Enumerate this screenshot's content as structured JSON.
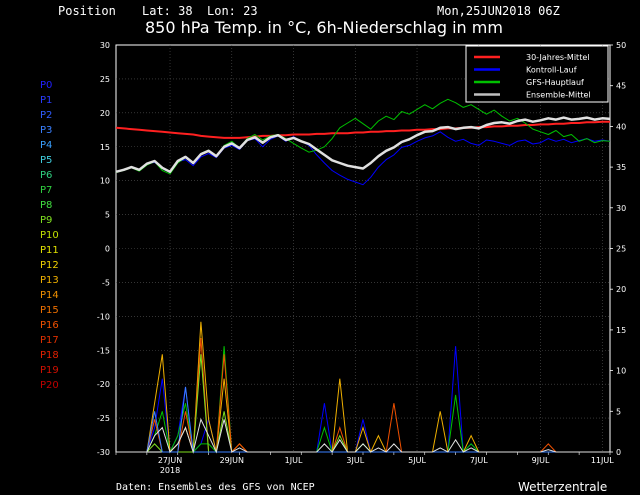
{
  "header": {
    "position_label": "Position",
    "lat_label": "Lat: 38",
    "lon_label": "Lon: 23",
    "date": "Mon,25JUN2018 06Z",
    "title": "850 hPa Temp. in °C, 6h-Niederschlag in mm"
  },
  "footer": {
    "source": "Daten: Ensembles des GFS von NCEP",
    "brand": "Wetterzentrale"
  },
  "members": [
    {
      "label": "P0",
      "color": "#2020ff"
    },
    {
      "label": "P1",
      "color": "#2a3cff"
    },
    {
      "label": "P2",
      "color": "#2f5cff"
    },
    {
      "label": "P3",
      "color": "#3a80ff"
    },
    {
      "label": "P4",
      "color": "#3aa0ff"
    },
    {
      "label": "P5",
      "color": "#40d0e0"
    },
    {
      "label": "P6",
      "color": "#30d080"
    },
    {
      "label": "P7",
      "color": "#30d040"
    },
    {
      "label": "P8",
      "color": "#40e040"
    },
    {
      "label": "P9",
      "color": "#80e020"
    },
    {
      "label": "P10",
      "color": "#c0e000"
    },
    {
      "label": "P11",
      "color": "#e0e000"
    },
    {
      "label": "P12",
      "color": "#f0d000"
    },
    {
      "label": "P13",
      "color": "#f0b000"
    },
    {
      "label": "P14",
      "color": "#f09000"
    },
    {
      "label": "P15",
      "color": "#f07000"
    },
    {
      "label": "P16",
      "color": "#f05000"
    },
    {
      "label": "P17",
      "color": "#e03000"
    },
    {
      "label": "P18",
      "color": "#e02000"
    },
    {
      "label": "P19",
      "color": "#d01000"
    },
    {
      "label": "P20",
      "color": "#c00000"
    }
  ],
  "chart_data": {
    "type": "line",
    "title": "850 hPa Temp. in °C, 6h-Niederschlag in mm",
    "x_start": "2018-06-25 06Z",
    "x_step_hours": 6,
    "x_ticks": [
      {
        "label": "27JUN",
        "idx": 7
      },
      {
        "label": "29JUN",
        "idx": 15
      },
      {
        "label": "1JUL",
        "idx": 23
      },
      {
        "label": "3JUL",
        "idx": 31
      },
      {
        "label": "5JUL",
        "idx": 39
      },
      {
        "label": "7JUL",
        "idx": 47
      },
      {
        "label": "9JUL",
        "idx": 55
      },
      {
        "label": "11JUL",
        "idx": 63
      }
    ],
    "x_sublabel": {
      "label": "2018",
      "idx": 7
    },
    "y_left": {
      "min": -30,
      "max": 30,
      "ticks": [
        30,
        25,
        20,
        15,
        10,
        5,
        0,
        -5,
        -10,
        -15,
        -20,
        -25,
        -30
      ]
    },
    "y_right": {
      "min": 0,
      "max": 50,
      "ticks": [
        50,
        45,
        40,
        35,
        30,
        25,
        20,
        15,
        10,
        5,
        0
      ]
    },
    "legend": [
      {
        "name": "30-Jahres-Mittel",
        "color": "#ff2020"
      },
      {
        "name": "Kontroll-Lauf",
        "color": "#0000ff"
      },
      {
        "name": "GFS-Hauptlauf",
        "color": "#00c000"
      },
      {
        "name": "Ensemble-Mittel",
        "color": "#c0c0c0"
      }
    ],
    "legend_placement": "top-right",
    "grid": true,
    "series": [
      {
        "name": "30-Jahres-Mittel",
        "color": "#ff2020",
        "width": 2,
        "values": [
          17.8,
          17.7,
          17.6,
          17.5,
          17.4,
          17.3,
          17.2,
          17.1,
          17.0,
          16.9,
          16.8,
          16.6,
          16.5,
          16.4,
          16.3,
          16.3,
          16.3,
          16.4,
          16.5,
          16.6,
          16.6,
          16.7,
          16.7,
          16.8,
          16.8,
          16.8,
          16.9,
          16.9,
          17.0,
          17.0,
          17.0,
          17.1,
          17.1,
          17.2,
          17.2,
          17.3,
          17.3,
          17.4,
          17.4,
          17.5,
          17.5,
          17.6,
          17.6,
          17.7,
          17.7,
          17.8,
          17.8,
          17.9,
          17.9,
          18.0,
          18.0,
          18.1,
          18.1,
          18.2,
          18.2,
          18.3,
          18.3,
          18.4,
          18.4,
          18.5,
          18.5,
          18.6,
          18.6,
          18.7,
          18.7
        ]
      },
      {
        "name": "Kontroll-Lauf",
        "color": "#0000ff",
        "width": 1,
        "values": [
          11.3,
          11.6,
          12.0,
          11.6,
          12.5,
          12.7,
          11.8,
          11.2,
          12.8,
          13.1,
          12.2,
          13.5,
          14.0,
          13.4,
          14.8,
          15.2,
          14.6,
          15.9,
          16.2,
          15.0,
          16.1,
          16.6,
          15.8,
          16.5,
          15.8,
          15.2,
          13.8,
          12.6,
          11.5,
          10.8,
          10.2,
          9.8,
          9.4,
          10.5,
          12.0,
          13.1,
          13.8,
          14.9,
          15.2,
          15.8,
          16.3,
          16.6,
          17.2,
          16.4,
          15.8,
          16.1,
          15.5,
          15.2,
          16.0,
          15.8,
          15.5,
          15.2,
          15.8,
          16.0,
          15.4,
          15.6,
          16.2,
          15.8,
          16.1,
          15.6,
          15.9,
          16.2,
          15.8,
          16.0,
          15.8
        ]
      },
      {
        "name": "GFS-Hauptlauf",
        "color": "#00c000",
        "width": 1,
        "values": [
          11.2,
          11.5,
          11.9,
          11.4,
          12.3,
          12.8,
          11.5,
          11.0,
          12.6,
          13.4,
          12.5,
          14.0,
          14.5,
          13.6,
          15.2,
          15.8,
          14.8,
          16.2,
          16.8,
          16.0,
          16.6,
          16.8,
          16.2,
          15.5,
          14.8,
          14.2,
          14.5,
          15.0,
          16.2,
          17.8,
          18.5,
          19.2,
          18.4,
          17.6,
          18.8,
          19.5,
          19.0,
          20.2,
          19.8,
          20.5,
          21.2,
          20.6,
          21.4,
          22.0,
          21.5,
          20.8,
          21.2,
          20.5,
          19.8,
          20.4,
          19.5,
          18.8,
          19.2,
          18.5,
          17.6,
          17.2,
          16.8,
          17.4,
          16.5,
          16.8,
          15.8,
          16.2,
          15.6,
          15.9,
          15.8
        ]
      },
      {
        "name": "Ensemble-Mittel",
        "color": "#e0e0e0",
        "width": 2.5,
        "values": [
          11.3,
          11.6,
          12.0,
          11.6,
          12.5,
          12.9,
          11.9,
          11.3,
          12.9,
          13.5,
          12.6,
          13.9,
          14.4,
          13.6,
          15.0,
          15.5,
          14.8,
          16.0,
          16.4,
          15.6,
          16.4,
          16.7,
          16.0,
          16.3,
          15.8,
          15.4,
          14.6,
          13.8,
          13.0,
          12.6,
          12.2,
          12.0,
          11.8,
          12.6,
          13.6,
          14.4,
          14.9,
          15.7,
          16.1,
          16.7,
          17.2,
          17.3,
          17.8,
          17.9,
          17.6,
          17.8,
          17.9,
          17.7,
          18.2,
          18.5,
          18.6,
          18.4,
          18.8,
          19.0,
          18.7,
          18.9,
          19.2,
          19.0,
          19.3,
          19.0,
          19.1,
          19.3,
          19.0,
          19.2,
          19.1
        ]
      }
    ],
    "precip_series": [
      {
        "name": "Kontroll-Lauf",
        "color": "#0000ff",
        "values": [
          0,
          0,
          0,
          0,
          0,
          3,
          9,
          0,
          2,
          8,
          0,
          1,
          4,
          0,
          0,
          0,
          0,
          0,
          0,
          0,
          0,
          0,
          0,
          0,
          0,
          0,
          0,
          6,
          0,
          0,
          0,
          0,
          4,
          0,
          0,
          0,
          0,
          0,
          0,
          0,
          0,
          0,
          0,
          0,
          13,
          0,
          1,
          0,
          0,
          0,
          0,
          0,
          0,
          0,
          0,
          0,
          0,
          0,
          0,
          0,
          0,
          0,
          0,
          0,
          0
        ]
      },
      {
        "name": "GFS-Hauptlauf",
        "color": "#00c000",
        "values": [
          0,
          0,
          0,
          0,
          0,
          2,
          5,
          0,
          2,
          6,
          0,
          1,
          1,
          0,
          13,
          0,
          0,
          0,
          0,
          0,
          0,
          0,
          0,
          0,
          0,
          0,
          0,
          3,
          0,
          0,
          0,
          0,
          1,
          0,
          0,
          0,
          0,
          0,
          0,
          0,
          0,
          0,
          0,
          0,
          7,
          0,
          1,
          0,
          0,
          0,
          0,
          0,
          0,
          0,
          0,
          0,
          0,
          0,
          0,
          0,
          0,
          0,
          0,
          0,
          0
        ]
      },
      {
        "name": "P13",
        "color": "#f0b000",
        "values": [
          0,
          0,
          0,
          0,
          0,
          6,
          12,
          0,
          1,
          3,
          0,
          16,
          4,
          0,
          9,
          0,
          1,
          0,
          0,
          0,
          0,
          0,
          0,
          0,
          0,
          0,
          0,
          0,
          0,
          9,
          0,
          0,
          3,
          0,
          2,
          0,
          0,
          0,
          0,
          0,
          0,
          0,
          5,
          0,
          0,
          0,
          2,
          0,
          0,
          0,
          0,
          0,
          0,
          0,
          0,
          0,
          0,
          0,
          0,
          0,
          0,
          0,
          0,
          0,
          0
        ]
      },
      {
        "name": "P17",
        "color": "#f05000",
        "values": [
          0,
          0,
          0,
          0,
          0,
          4,
          0,
          0,
          0,
          5,
          0,
          14,
          0,
          0,
          12,
          0,
          1,
          0,
          0,
          0,
          0,
          0,
          0,
          0,
          0,
          0,
          0,
          0,
          0,
          3,
          0,
          0,
          0,
          0,
          0,
          0,
          6,
          0,
          0,
          0,
          0,
          0,
          0,
          0,
          0,
          0,
          0,
          0,
          0,
          0,
          0,
          0,
          0,
          0,
          0,
          0,
          1,
          0,
          0,
          0,
          0,
          0,
          0,
          0,
          0
        ]
      },
      {
        "name": "P9",
        "color": "#80e020",
        "values": [
          0,
          0,
          0,
          0,
          0,
          1,
          0,
          0,
          0,
          0,
          0,
          12,
          0,
          0,
          5,
          0,
          0,
          0,
          0,
          0,
          0,
          0,
          0,
          0,
          0,
          0,
          0,
          0,
          0,
          2,
          0,
          0,
          0,
          0,
          0,
          0,
          0,
          0,
          0,
          0,
          0,
          0,
          0,
          0,
          0,
          0,
          0,
          0,
          0,
          0,
          0,
          0,
          0,
          0,
          0,
          0,
          0,
          0,
          0,
          0,
          0,
          0,
          0,
          0,
          0
        ]
      },
      {
        "name": "P3",
        "color": "#3a80ff",
        "values": [
          0,
          0,
          0,
          0,
          0,
          5,
          0,
          0,
          0,
          8,
          0,
          0,
          0,
          0,
          0,
          0,
          0,
          0,
          0,
          0,
          0,
          0,
          0,
          0,
          0,
          0,
          0,
          0,
          0,
          0,
          0,
          0,
          0,
          0,
          0,
          0,
          0,
          0,
          0,
          0,
          0,
          0,
          0,
          0,
          0,
          0,
          0,
          0,
          0,
          0,
          0,
          0,
          0,
          0,
          0,
          0,
          0,
          0,
          0,
          0,
          0,
          0,
          0,
          0,
          0
        ]
      },
      {
        "name": "Ensemble-Mittel",
        "color": "#e0e0e0",
        "values": [
          0,
          0,
          0,
          0,
          0,
          2,
          3,
          0,
          1,
          3,
          0,
          4,
          2,
          0,
          4,
          0,
          0.5,
          0,
          0,
          0,
          0,
          0,
          0,
          0,
          0,
          0,
          0,
          1,
          0,
          1.5,
          0,
          0,
          1,
          0,
          0.5,
          0,
          1,
          0,
          0,
          0,
          0,
          0,
          0.5,
          0,
          1.5,
          0,
          0.5,
          0,
          0,
          0,
          0,
          0,
          0,
          0,
          0,
          0,
          0.3,
          0,
          0,
          0,
          0,
          0,
          0,
          0,
          0
        ]
      }
    ]
  }
}
